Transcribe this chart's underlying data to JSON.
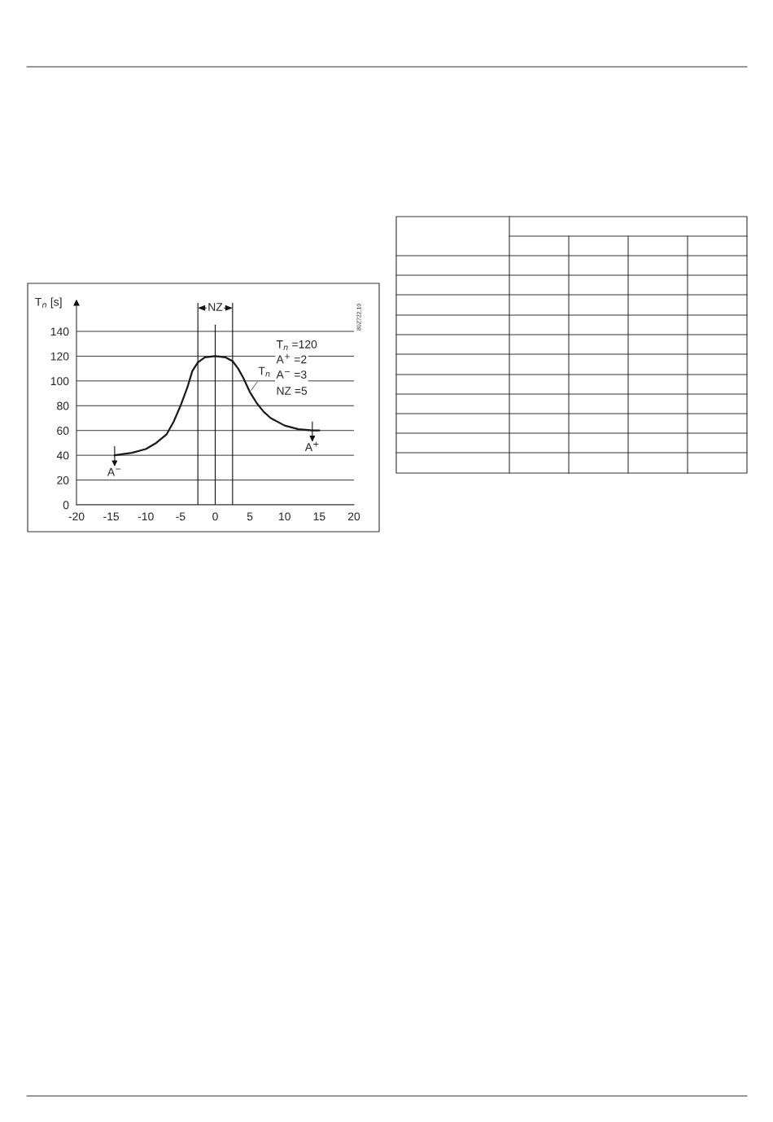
{
  "chart_data": {
    "type": "line",
    "ylabel": "T$_{n}$ [s]",
    "x": [
      -14.5,
      -12,
      -10,
      -8.5,
      -7,
      -6,
      -5,
      -4,
      -3.3,
      -2.5,
      -1.5,
      0,
      1.5,
      2.5,
      3.3,
      4,
      5,
      6,
      7,
      8,
      10,
      12,
      14,
      15
    ],
    "series": [
      {
        "name": "T$_{n}$",
        "color": "#1a1a1a",
        "values": [
          40,
          42,
          45,
          50,
          57,
          67,
          80,
          95,
          108,
          115,
          119,
          120,
          119,
          116,
          110,
          103,
          91,
          82,
          75,
          70,
          64,
          61,
          60,
          60
        ]
      }
    ],
    "xlim": [
      -20,
      20
    ],
    "xticks": [
      -20,
      -15,
      -10,
      -5,
      0,
      5,
      10,
      15,
      20
    ],
    "ylim": [
      0,
      163
    ],
    "yticks": [
      0,
      20,
      40,
      60,
      80,
      100,
      120,
      140
    ],
    "grid": "y",
    "marker": "none",
    "line_style": "solid",
    "legend": false,
    "ref_lines": [
      {
        "axis": "x",
        "value": -2.5
      },
      {
        "axis": "x",
        "value": 0
      },
      {
        "axis": "x",
        "value": 2.5
      }
    ],
    "annotations": [
      "NZ",
      {
        "text": "A$^{−}$",
        "x": -14.5,
        "y": 40
      },
      {
        "text": "A$^{+}$",
        "x": 14,
        "y": 60
      },
      "T$_{n}$ =120",
      "A$^{+}$ =2",
      "A$^{−}$ =3",
      "NZ =5",
      "80Z722.10"
    ]
  }
}
